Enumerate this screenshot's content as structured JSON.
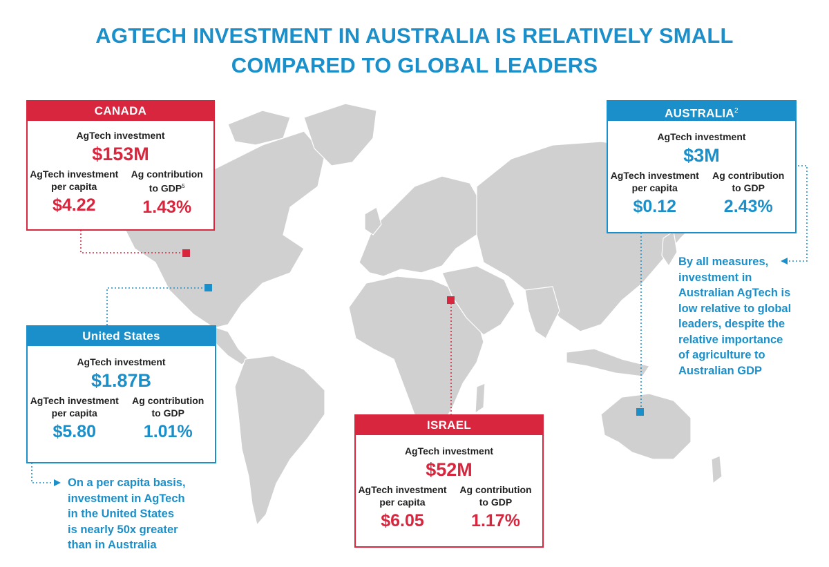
{
  "title": {
    "line1": "AGTECH INVESTMENT IN AUSTRALIA IS RELATIVELY SMALL",
    "line2": "COMPARED TO GLOBAL LEADERS"
  },
  "colors": {
    "red": "#d7263d",
    "blue": "#1a8fc9",
    "land": "#d0d0d0"
  },
  "cards": {
    "canada": {
      "name": "CANADA",
      "investment_label": "AgTech investment",
      "investment": "$153M",
      "per_capita_label_1": "AgTech investment",
      "per_capita_label_2": "per capita",
      "per_capita": "$4.22",
      "gdp_label_1": "Ag contribution",
      "gdp_label_2": "to GDP",
      "gdp_footnote": "5",
      "gdp": "1.43%"
    },
    "australia": {
      "name": "AUSTRALIA",
      "name_footnote": "2",
      "investment_label": "AgTech investment",
      "investment": "$3M",
      "per_capita_label_1": "AgTech investment",
      "per_capita_label_2": "per capita",
      "per_capita": "$0.12",
      "gdp_label_1": "Ag contribution",
      "gdp_label_2": "to GDP",
      "gdp": "2.43%"
    },
    "united_states": {
      "name": "United States",
      "investment_label": "AgTech investment",
      "investment": "$1.87B",
      "per_capita_label_1": "AgTech investment",
      "per_capita_label_2": "per capita",
      "per_capita": "$5.80",
      "gdp_label_1": "Ag contribution",
      "gdp_label_2": "to GDP",
      "gdp": "1.01%"
    },
    "israel": {
      "name": "ISRAEL",
      "investment_label": "AgTech investment",
      "investment": "$52M",
      "per_capita_label_1": "AgTech investment",
      "per_capita_label_2": "per capita",
      "per_capita": "$6.05",
      "gdp_label_1": "Ag contribution",
      "gdp_label_2": "to GDP",
      "gdp": "1.17%"
    }
  },
  "notes": {
    "australia": [
      "By all measures,",
      "investment in",
      "Australian AgTech is",
      "low relative to global",
      "leaders, despite the",
      "relative importance",
      "of agriculture to",
      "Australian GDP"
    ],
    "united_states": [
      "On a per capita basis,",
      "investment in AgTech",
      "in the United States",
      "is nearly 50x greater",
      "than in Australia"
    ]
  }
}
